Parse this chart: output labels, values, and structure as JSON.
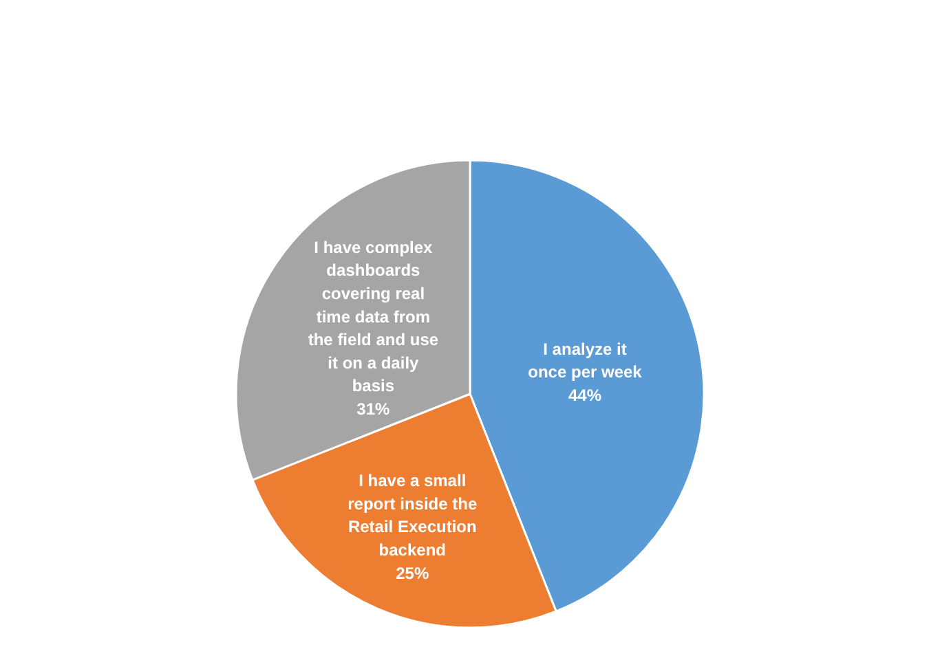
{
  "chart_data": {
    "type": "pie",
    "categories": [
      "I analyze it once per week",
      "I have a small report inside the Retail Execution backend",
      "I have complex dashboards covering real time data from the field and use it on a daily basis"
    ],
    "values": [
      44,
      25,
      31
    ],
    "value_labels": [
      "44%",
      "25%",
      "31%"
    ],
    "colors": [
      "#5b9bd5",
      "#ed7d31",
      "#a5a5a5"
    ],
    "legend": false
  }
}
